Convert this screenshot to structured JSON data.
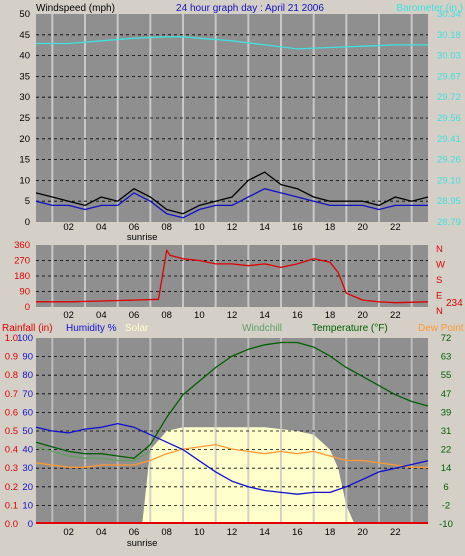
{
  "title": "24 hour graph day : April 21 2006",
  "colors": {
    "background": "#d4d0c8",
    "plot_bg": "#8f8f8f",
    "wind_speed": "#1010c8",
    "wind_gust": "#000000",
    "barometer": "#40e0e0",
    "direction": "#e00000",
    "rainfall": "#e00000",
    "humidity": "#1010d0",
    "solar": "#ffffcc",
    "windchill": "#60a060",
    "temperature": "#006000",
    "dewpoint": "#ff9933"
  },
  "chart_data": [
    {
      "type": "line",
      "name": "wind-barometer",
      "x_ticks": [
        "02",
        "04",
        "06",
        "08",
        "10",
        "12",
        "14",
        "16",
        "18",
        "20",
        "22"
      ],
      "x_marker": "sunrise",
      "left_axis": {
        "label": "Windspeed (mph)",
        "ticks": [
          "0",
          "5",
          "10",
          "15",
          "20",
          "25",
          "30",
          "35",
          "40",
          "45",
          "50"
        ],
        "ylim": [
          0,
          50
        ]
      },
      "right_axis": {
        "label": "Barometer (in.)",
        "ticks": [
          "28.79",
          "28.95",
          "29.10",
          "29.26",
          "29.41",
          "29.56",
          "29.72",
          "29.87",
          "30.03",
          "30.18",
          "30.34"
        ],
        "ylim": [
          28.79,
          30.34
        ]
      },
      "series": [
        {
          "key": "gust",
          "hours": [
            0,
            1,
            2,
            3,
            4,
            5,
            6,
            7,
            8,
            9,
            10,
            11,
            12,
            13,
            14,
            15,
            16,
            17,
            18,
            19,
            20,
            21,
            22,
            23,
            24
          ],
          "values": [
            7,
            6,
            5,
            4,
            6,
            5,
            8,
            6,
            3,
            2,
            4,
            5,
            6,
            10,
            12,
            9,
            8,
            6,
            5,
            5,
            5,
            4,
            6,
            5,
            6
          ]
        },
        {
          "key": "wind",
          "hours": [
            0,
            1,
            2,
            3,
            4,
            5,
            6,
            7,
            8,
            9,
            10,
            11,
            12,
            13,
            14,
            15,
            16,
            17,
            18,
            19,
            20,
            21,
            22,
            23,
            24
          ],
          "values": [
            5,
            4,
            4,
            3,
            4,
            4,
            7,
            5,
            2,
            1,
            3,
            4,
            4,
            6,
            8,
            7,
            6,
            5,
            4,
            4,
            4,
            3,
            4,
            4,
            4
          ]
        },
        {
          "key": "barometer",
          "hours": [
            0,
            2,
            4,
            6,
            8,
            9,
            10,
            12,
            14,
            16,
            18,
            20,
            22,
            24
          ],
          "values": [
            30.12,
            30.12,
            30.14,
            30.16,
            30.17,
            30.17,
            30.16,
            30.14,
            30.11,
            30.08,
            30.09,
            30.1,
            30.11,
            30.11
          ]
        }
      ]
    },
    {
      "type": "line",
      "name": "wind-direction",
      "x_ticks": [
        "02",
        "04",
        "06",
        "08",
        "10",
        "12",
        "14",
        "16",
        "18",
        "20",
        "22"
      ],
      "left_axis": {
        "ticks": [
          "0",
          "90",
          "180",
          "270",
          "360"
        ],
        "ylim": [
          0,
          360
        ]
      },
      "right_axis": {
        "ticks": [
          "N",
          "E",
          "S",
          "W",
          "N"
        ]
      },
      "current_value": "234",
      "series": [
        {
          "key": "direction",
          "hours": [
            0,
            2,
            4,
            6,
            7.5,
            8,
            8.2,
            9,
            10,
            11,
            12,
            13,
            14,
            15,
            16,
            17,
            17.5,
            18,
            18.5,
            19,
            20,
            21,
            22,
            24
          ],
          "values": [
            30,
            30,
            35,
            40,
            45,
            330,
            300,
            280,
            270,
            250,
            250,
            240,
            250,
            230,
            250,
            280,
            270,
            260,
            200,
            80,
            40,
            30,
            25,
            30
          ]
        }
      ]
    },
    {
      "type": "line",
      "name": "rain-humidity-solar-temperature",
      "x_ticks": [
        "02",
        "04",
        "06",
        "08",
        "10",
        "12",
        "14",
        "16",
        "18",
        "20",
        "22"
      ],
      "x_marker": "sunrise",
      "legend": [
        "Rainfall (in)",
        "Humidity %",
        "Solar",
        "Windchill",
        "Temperature (°F)",
        "Dew Point"
      ],
      "rain_axis": {
        "ticks": [
          "0.0",
          "0.1",
          "0.2",
          "0.3",
          "0.4",
          "0.5",
          "0.6",
          "0.7",
          "0.8",
          "0.9",
          "1.0"
        ],
        "ylim": [
          0,
          1.0
        ]
      },
      "humidity_axis": {
        "ticks": [
          "0",
          "10",
          "20",
          "30",
          "40",
          "50",
          "60",
          "70",
          "80",
          "90",
          "100"
        ],
        "ylim": [
          0,
          100
        ]
      },
      "temperature_axis": {
        "ticks": [
          "-10",
          "-2",
          "6",
          "14",
          "22",
          "31",
          "39",
          "47",
          "55",
          "63",
          "72"
        ],
        "ylim": [
          -10,
          72
        ]
      },
      "series": [
        {
          "key": "solar",
          "hours": [
            0,
            6.5,
            7,
            8,
            9,
            10,
            12,
            14,
            16,
            17,
            18,
            18.5,
            19,
            19.5,
            24
          ],
          "values": [
            0,
            0,
            40,
            50,
            52,
            52,
            52,
            52,
            50,
            48,
            40,
            30,
            10,
            0,
            0
          ]
        },
        {
          "key": "humidity",
          "hours": [
            0,
            1,
            2,
            3,
            4,
            5,
            6,
            7,
            8,
            9,
            10,
            11,
            12,
            13,
            14,
            15,
            16,
            17,
            18,
            19,
            20,
            21,
            22,
            23,
            24
          ],
          "values": [
            52,
            50,
            49,
            51,
            52,
            54,
            52,
            48,
            44,
            40,
            34,
            28,
            23,
            20,
            18,
            17,
            16,
            17,
            17,
            20,
            24,
            28,
            30,
            32,
            34
          ]
        },
        {
          "key": "temperature",
          "hours": [
            0,
            1,
            2,
            3,
            4,
            5,
            6,
            7,
            8,
            9,
            10,
            11,
            12,
            13,
            14,
            15,
            16,
            17,
            18,
            19,
            20,
            21,
            22,
            23,
            24
          ],
          "values": [
            26,
            24,
            22,
            21,
            21,
            20,
            19,
            25,
            37,
            47,
            53,
            59,
            64,
            67,
            69,
            70,
            70,
            68,
            64,
            59,
            55,
            51,
            47,
            44,
            42
          ]
        },
        {
          "key": "dewpoint",
          "hours": [
            0,
            1,
            2,
            3,
            4,
            5,
            6,
            7,
            8,
            9,
            10,
            11,
            12,
            13,
            14,
            15,
            16,
            17,
            18,
            19,
            20,
            21,
            22,
            23,
            24
          ],
          "values": [
            17,
            16,
            15,
            15,
            16,
            16,
            16,
            18,
            21,
            23,
            24,
            25,
            23,
            22,
            21,
            22,
            21,
            22,
            20,
            18,
            18,
            17,
            16,
            15,
            15
          ]
        },
        {
          "key": "windchill",
          "hours": [
            0,
            1,
            2,
            3,
            4,
            5,
            6,
            7
          ],
          "values": [
            24,
            22,
            20,
            19,
            19,
            18,
            18,
            22
          ]
        },
        {
          "key": "rainfall",
          "hours": [
            0,
            24
          ],
          "values": [
            0,
            0
          ]
        }
      ]
    }
  ]
}
